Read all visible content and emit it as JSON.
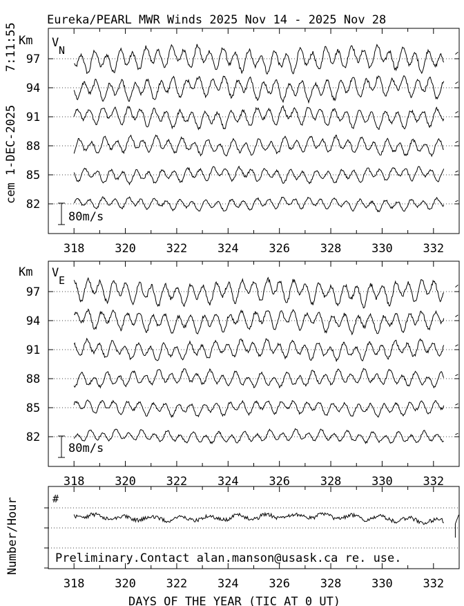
{
  "header": {
    "title": "Eureka/PEARL MWR Winds 2025 Nov 14 - 2025 Nov 28",
    "timestamp": "7:11:55",
    "side_stamp": "cem 1-DEC-2025"
  },
  "footer": {
    "xlabel": "DAYS OF THE YEAR (TIC AT 0 UT)"
  },
  "chart_data": [
    {
      "type": "line",
      "panel": "vn",
      "label_main": "V",
      "label_sub": "N",
      "unit_label": "Km",
      "scale_bar_label": "80m/s",
      "xlim": [
        317,
        333
      ],
      "x_ticks": [
        "318",
        "320",
        "322",
        "324",
        "326",
        "328",
        "330",
        "332"
      ],
      "y_ticks": [
        "82",
        "85",
        "88",
        "91",
        "94",
        "97"
      ],
      "series_altitudes_km": [
        97,
        94,
        91,
        88,
        85,
        82
      ],
      "series_amplitude": [
        1.0,
        0.9,
        0.8,
        0.7,
        0.6,
        0.5
      ],
      "data_start_day": 318,
      "data_end_day": 332.4,
      "grid": "dotted at each altitude"
    },
    {
      "type": "line",
      "panel": "ve",
      "label_main": "V",
      "label_sub": "E",
      "unit_label": "Km",
      "scale_bar_label": "80m/s",
      "xlim": [
        317,
        333
      ],
      "x_ticks": [
        "318",
        "320",
        "322",
        "324",
        "326",
        "328",
        "330",
        "332"
      ],
      "y_ticks": [
        "82",
        "85",
        "88",
        "91",
        "94",
        "97"
      ],
      "series_altitudes_km": [
        97,
        94,
        91,
        88,
        85,
        82
      ],
      "series_amplitude": [
        1.0,
        0.85,
        0.75,
        0.65,
        0.6,
        0.5
      ],
      "data_start_day": 318,
      "data_end_day": 332.4,
      "grid": "dotted at each altitude"
    },
    {
      "type": "line",
      "panel": "count",
      "label_main": "#",
      "ylabel": "Number/Hour",
      "notice": "Preliminary.Contact alan.manson@usask.ca re. use.",
      "xlim": [
        317,
        333
      ],
      "x_ticks": [
        "318",
        "320",
        "322",
        "324",
        "326",
        "328",
        "330",
        "332"
      ],
      "data_start_day": 318,
      "data_end_day": 332.4,
      "grid": "dotted"
    }
  ]
}
